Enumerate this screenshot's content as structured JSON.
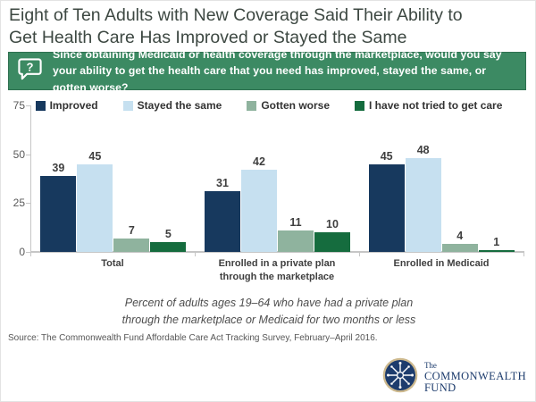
{
  "title": {
    "line1": "Eight of Ten Adults with New Coverage Said Their Ability to",
    "line2": "Get Health Care Has Improved or Stayed the Same"
  },
  "banner": {
    "icon": "question-speech-bubble",
    "bg_color": "#3c8a63",
    "text": "Since obtaining Medicaid or health coverage through the marketplace, would you say your ability to get the health care that you need has improved, stayed the same, or gotten worse?"
  },
  "chart_data": {
    "type": "bar",
    "categories": [
      "Total",
      "Enrolled in a private plan through the marketplace",
      "Enrolled in Medicaid"
    ],
    "series": [
      {
        "name": "Improved",
        "color": "#17395e",
        "values": [
          39,
          31,
          45
        ]
      },
      {
        "name": "Stayed the same",
        "color": "#c6e0f0",
        "values": [
          45,
          42,
          48
        ]
      },
      {
        "name": "Gotten worse",
        "color": "#8fb39e",
        "values": [
          7,
          11,
          4
        ]
      },
      {
        "name": "I have not tried to get care",
        "color": "#156c3e",
        "values": [
          5,
          10,
          1
        ]
      }
    ],
    "ylim": [
      0,
      75
    ],
    "yticks": [
      0,
      25,
      50,
      75
    ],
    "legend_position": "top",
    "grid": false,
    "value_labels": true
  },
  "note": "Percent of adults ages 19–64 who have had a private plan through the marketplace or Medicaid for two months or less",
  "source": "Source: The Commonwealth Fund Affordable Care Act Tracking Survey, February–April 2016.",
  "logo": {
    "the": "The",
    "commonwealth": "COMMONWEALTH",
    "fund": "FUND"
  }
}
